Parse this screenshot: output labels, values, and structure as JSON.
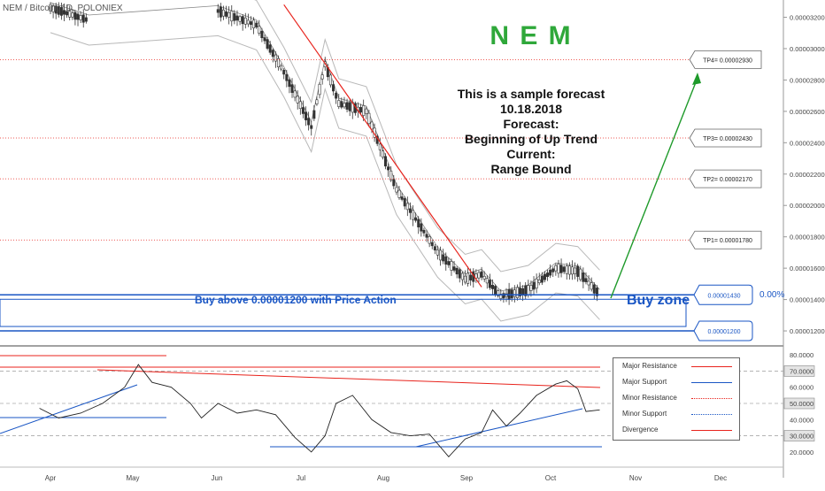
{
  "header": {
    "symbol_line": "NEM / Bitcoin, 1D, POLONIEX"
  },
  "title": {
    "brand": "N E M",
    "brand_color": "#2fa83a"
  },
  "forecast": {
    "line1": "This is a sample forecast",
    "line2": "10.18.2018",
    "line3": "Forecast:",
    "line4": "Beginning of Up Trend",
    "line5": "Current:",
    "line6": "Range Bound"
  },
  "targets": [
    {
      "label": "TP4= 0.00002930",
      "value": 2.93e-05
    },
    {
      "label": "TP3= 0.00002430",
      "value": 2.43e-05
    },
    {
      "label": "TP2= 0.00002170",
      "value": 2.17e-05
    },
    {
      "label": "TP1= 0.00001780",
      "value": 1.78e-05
    }
  ],
  "zone": {
    "upper_label": "0.00001430",
    "lower_label": "0.00001200",
    "upper_value": 1.43e-05,
    "lower_value": 1.2e-05,
    "buy_text": "Buy above 0.00001200 with Price Action",
    "zone_text": "Buy zone",
    "pct_label": "0.00%"
  },
  "legend": {
    "items": [
      {
        "label": "Major Resistance",
        "color": "#e8231c",
        "style": "solid"
      },
      {
        "label": "Major Support",
        "color": "#1a56c4",
        "style": "solid"
      },
      {
        "label": "Minor Resistance",
        "color": "#e8231c",
        "style": "dotted"
      },
      {
        "label": "Minor Support",
        "color": "#1a56c4",
        "style": "dotted"
      },
      {
        "label": "Divergence",
        "color": "#e8231c",
        "style": "solid"
      }
    ]
  },
  "colors": {
    "resistance": "#e8231c",
    "support": "#1a56c4",
    "trend_arrow": "#1e9a2a",
    "candle": "#333333",
    "bands": "#b8b8b8"
  },
  "chart_data": [
    {
      "type": "candlestick",
      "title": "NEM / Bitcoin, 1D, POLONIEX",
      "x_tick_labels": [
        "Apr",
        "May",
        "Jun",
        "Jul",
        "Aug",
        "Sep",
        "Oct",
        "Nov",
        "Dec"
      ],
      "y_tick_labels": [
        "0.00003200",
        "0.00003000",
        "0.00002800",
        "0.00002600",
        "0.00002400",
        "0.00002200",
        "0.00002000",
        "0.00001800",
        "0.00001600",
        "0.00001400",
        "0.00001200"
      ],
      "ylim": [
        1.11e-05,
        3.31e-05
      ],
      "close_trend": [
        {
          "x": "Apr 01",
          "y": 3.26e-05
        },
        {
          "x": "Apr 15",
          "y": 3.18e-05
        },
        {
          "x": "Jun 01",
          "y": 3.24e-05
        },
        {
          "x": "Jun 15",
          "y": 3.15e-05
        },
        {
          "x": "Jun 25",
          "y": 2.85e-05
        },
        {
          "x": "Jul 05",
          "y": 2.5e-05
        },
        {
          "x": "Jul 10",
          "y": 2.9e-05
        },
        {
          "x": "Jul 15",
          "y": 2.65e-05
        },
        {
          "x": "Jul 25",
          "y": 2.6e-05
        },
        {
          "x": "Aug 05",
          "y": 2.1e-05
        },
        {
          "x": "Aug 20",
          "y": 1.7e-05
        },
        {
          "x": "Aug 30",
          "y": 1.53e-05
        },
        {
          "x": "Sep 05",
          "y": 1.56e-05
        },
        {
          "x": "Sep 12",
          "y": 1.42e-05
        },
        {
          "x": "Sep 22",
          "y": 1.46e-05
        },
        {
          "x": "Oct 02",
          "y": 1.6e-05
        },
        {
          "x": "Oct 10",
          "y": 1.58e-05
        },
        {
          "x": "Oct 18",
          "y": 1.43e-05
        }
      ],
      "horizontal_levels": [
        {
          "value": 2.93e-05,
          "label": "TP4= 0.00002930"
        },
        {
          "value": 2.43e-05,
          "label": "TP3= 0.00002430"
        },
        {
          "value": 2.17e-05,
          "label": "TP2= 0.00002170"
        },
        {
          "value": 1.78e-05,
          "label": "TP1= 0.00001780"
        },
        {
          "value": 1.43e-05,
          "label": "0.00001430"
        },
        {
          "value": 1.2e-05,
          "label": "0.00001200"
        }
      ],
      "grid": false
    },
    {
      "type": "line",
      "y_tick_labels": [
        "80.0000",
        "70.0000",
        "60.0000",
        "50.0000",
        "40.0000",
        "30.0000",
        "20.0000"
      ],
      "ylim": [
        15,
        85
      ],
      "reference_levels": [
        70,
        50,
        30
      ],
      "legend_position": "right",
      "series": [
        {
          "values": [
            {
              "x": "Mar 28",
              "y": 47
            },
            {
              "x": "Apr 04",
              "y": 41
            },
            {
              "x": "Apr 12",
              "y": 44
            },
            {
              "x": "Apr 20",
              "y": 50
            },
            {
              "x": "Apr 28",
              "y": 60
            },
            {
              "x": "May 03",
              "y": 74
            },
            {
              "x": "May 08",
              "y": 63
            },
            {
              "x": "May 15",
              "y": 60
            },
            {
              "x": "May 22",
              "y": 50
            },
            {
              "x": "May 26",
              "y": 41
            },
            {
              "x": "Jun 01",
              "y": 50
            },
            {
              "x": "Jun 08",
              "y": 44
            },
            {
              "x": "Jun 15",
              "y": 46
            },
            {
              "x": "Jun 22",
              "y": 43
            },
            {
              "x": "Jun 29",
              "y": 29
            },
            {
              "x": "Jul 05",
              "y": 20
            },
            {
              "x": "Jul 10",
              "y": 30
            },
            {
              "x": "Jul 14",
              "y": 50
            },
            {
              "x": "Jul 20",
              "y": 55
            },
            {
              "x": "Jul 27",
              "y": 40
            },
            {
              "x": "Aug 03",
              "y": 32
            },
            {
              "x": "Aug 10",
              "y": 30
            },
            {
              "x": "Aug 17",
              "y": 31
            },
            {
              "x": "Aug 24",
              "y": 17
            },
            {
              "x": "Aug 30",
              "y": 28
            },
            {
              "x": "Sep 05",
              "y": 32
            },
            {
              "x": "Sep 09",
              "y": 46
            },
            {
              "x": "Sep 14",
              "y": 36
            },
            {
              "x": "Sep 19",
              "y": 44
            },
            {
              "x": "Sep 25",
              "y": 55
            },
            {
              "x": "Oct 02",
              "y": 62
            },
            {
              "x": "Oct 06",
              "y": 64
            },
            {
              "x": "Oct 10",
              "y": 59
            },
            {
              "x": "Oct 13",
              "y": 45
            },
            {
              "x": "Oct 18",
              "y": 46
            }
          ]
        }
      ]
    }
  ]
}
